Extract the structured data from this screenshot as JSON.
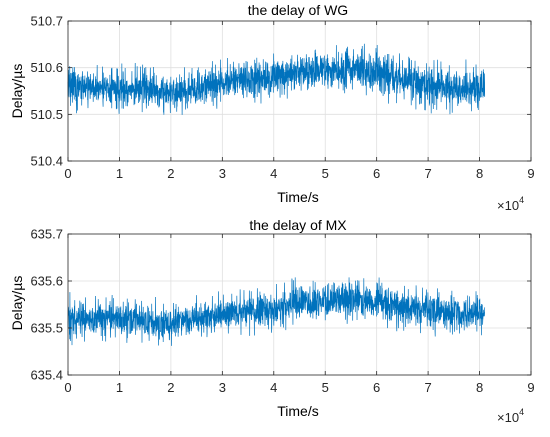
{
  "chart_data": [
    {
      "type": "line",
      "title": "the delay of WG",
      "xlabel": "Time/s",
      "ylabel": "Delay/µs",
      "xlim": [
        0,
        9
      ],
      "ylim": [
        510.4,
        510.7
      ],
      "x_ticks": [
        "0",
        "1",
        "2",
        "3",
        "4",
        "5",
        "6",
        "7",
        "8",
        "9"
      ],
      "y_ticks": [
        "510.4",
        "510.5",
        "510.6",
        "510.7"
      ],
      "x_multiplier": "×10",
      "x_multiplier_exp": "4",
      "grid": true,
      "color": "#0072BD",
      "x_data_range": [
        0,
        8.1
      ],
      "series": [
        {
          "x": [
            0,
            0.5,
            1,
            1.5,
            2,
            2.5,
            3,
            3.5,
            4,
            4.5,
            5,
            5.5,
            6,
            6.5,
            7,
            7.5,
            8,
            8.1
          ],
          "center": [
            510.56,
            510.555,
            510.555,
            510.55,
            510.545,
            510.55,
            510.57,
            510.575,
            510.58,
            510.59,
            510.595,
            510.6,
            510.59,
            510.575,
            510.565,
            510.56,
            510.555,
            510.56
          ],
          "low": [
            510.5,
            510.5,
            510.5,
            510.49,
            510.49,
            510.5,
            510.51,
            510.52,
            510.52,
            510.53,
            510.53,
            510.54,
            510.52,
            510.51,
            510.49,
            510.5,
            510.5,
            510.5
          ],
          "high": [
            510.62,
            510.61,
            510.61,
            510.61,
            510.6,
            510.61,
            510.63,
            510.63,
            510.64,
            510.64,
            510.65,
            510.655,
            510.65,
            510.64,
            510.63,
            510.62,
            510.62,
            510.625
          ]
        }
      ]
    },
    {
      "type": "line",
      "title": "the delay of MX",
      "xlabel": "Time/s",
      "ylabel": "Delay/µs",
      "xlim": [
        0,
        9
      ],
      "ylim": [
        635.4,
        635.7
      ],
      "x_ticks": [
        "0",
        "1",
        "2",
        "3",
        "4",
        "5",
        "6",
        "7",
        "8",
        "9"
      ],
      "y_ticks": [
        "635.4",
        "635.5",
        "635.6",
        "635.7"
      ],
      "x_multiplier": "×10",
      "x_multiplier_exp": "4",
      "grid": true,
      "color": "#0072BD",
      "x_data_range": [
        0,
        8.1
      ],
      "series": [
        {
          "x": [
            0,
            0.5,
            1,
            1.5,
            2,
            2.5,
            3,
            3.5,
            4,
            4.5,
            5,
            5.5,
            6,
            6.5,
            7,
            7.5,
            8,
            8.1
          ],
          "center": [
            635.52,
            635.52,
            635.52,
            635.515,
            635.515,
            635.52,
            635.53,
            635.535,
            635.54,
            635.55,
            635.555,
            635.56,
            635.555,
            635.545,
            635.54,
            635.53,
            635.53,
            635.53
          ],
          "low": [
            635.46,
            635.47,
            635.47,
            635.46,
            635.46,
            635.47,
            635.48,
            635.48,
            635.49,
            635.5,
            635.5,
            635.51,
            635.5,
            635.49,
            635.48,
            635.48,
            635.48,
            635.48
          ],
          "high": [
            635.58,
            635.58,
            635.57,
            635.57,
            635.56,
            635.57,
            635.58,
            635.59,
            635.6,
            635.61,
            635.61,
            635.62,
            635.61,
            635.6,
            635.59,
            635.58,
            635.58,
            635.58
          ]
        }
      ]
    }
  ]
}
